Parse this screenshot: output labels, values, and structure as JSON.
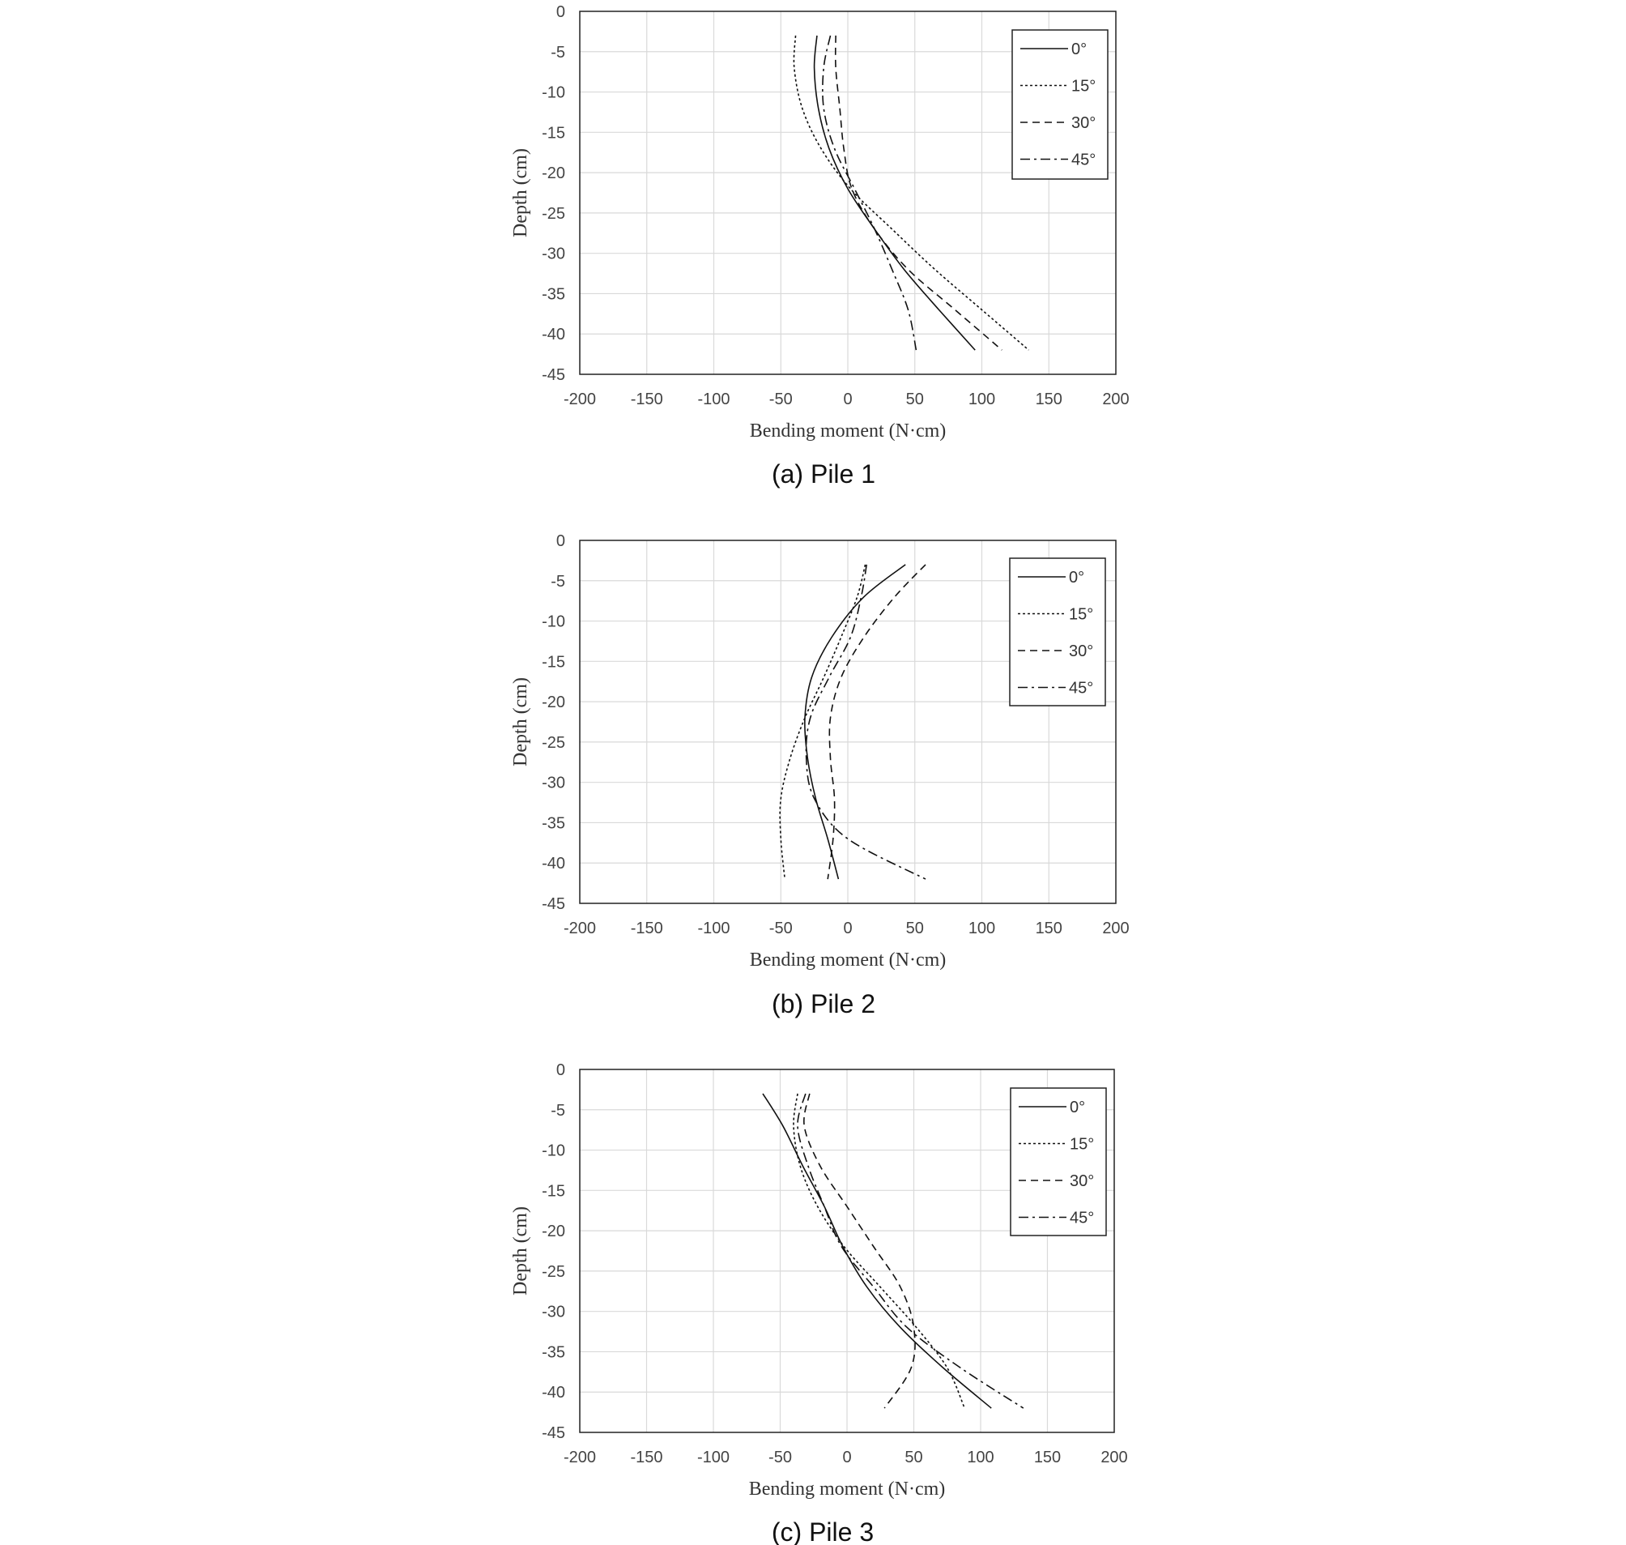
{
  "chart_data": [
    {
      "type": "line",
      "caption": "(a)  Pile 1",
      "xlabel": "Bending  moment  (N·cm)",
      "ylabel": "Depth (cm)",
      "xlim": [
        -200,
        200
      ],
      "ylim": [
        -45,
        0
      ],
      "xticks": [
        "-200",
        "-150",
        "-100",
        "-50",
        "0",
        "50",
        "100",
        "150",
        "200"
      ],
      "yticks": [
        "0",
        "-5",
        "-10",
        "-15",
        "-20",
        "-25",
        "-30",
        "-35",
        "-40",
        "-45"
      ],
      "grid": true,
      "legend_position": "top-right",
      "series": [
        {
          "name": "0°",
          "style": "solid",
          "points": [
            [
              -23,
              -3
            ],
            [
              -25,
              -7
            ],
            [
              -22,
              -12
            ],
            [
              -14,
              -17
            ],
            [
              0,
              -22
            ],
            [
              20,
              -27
            ],
            [
              42,
              -32
            ],
            [
              68,
              -37
            ],
            [
              95,
              -42
            ]
          ]
        },
        {
          "name": "15°",
          "style": "dotted",
          "points": [
            [
              -39,
              -3
            ],
            [
              -40,
              -7
            ],
            [
              -34,
              -12
            ],
            [
              -20,
              -17
            ],
            [
              2,
              -22
            ],
            [
              33,
              -27
            ],
            [
              65,
              -32
            ],
            [
              100,
              -37
            ],
            [
              135,
              -42
            ]
          ]
        },
        {
          "name": "30°",
          "style": "dashed",
          "points": [
            [
              -9,
              -3
            ],
            [
              -9,
              -7
            ],
            [
              -6,
              -12
            ],
            [
              -3,
              -17
            ],
            [
              3,
              -22
            ],
            [
              20,
              -27
            ],
            [
              45,
              -32
            ],
            [
              80,
              -37
            ],
            [
              115,
              -42
            ]
          ]
        },
        {
          "name": "45°",
          "style": "dashdot",
          "points": [
            [
              -13,
              -3
            ],
            [
              -18,
              -7
            ],
            [
              -18,
              -12
            ],
            [
              -10,
              -17
            ],
            [
              5,
              -22
            ],
            [
              20,
              -27
            ],
            [
              33,
              -32
            ],
            [
              45,
              -37
            ],
            [
              51,
              -42
            ]
          ]
        }
      ]
    },
    {
      "type": "line",
      "caption": "(b)  Pile 2",
      "xlabel": "Bending  moment  (N·cm)",
      "ylabel": "Depth (cm)",
      "xlim": [
        -200,
        200
      ],
      "ylim": [
        -45,
        0
      ],
      "xticks": [
        "-200",
        "-150",
        "-100",
        "-50",
        "0",
        "50",
        "100",
        "150",
        "200"
      ],
      "yticks": [
        "0",
        "-5",
        "-10",
        "-15",
        "-20",
        "-25",
        "-30",
        "-35",
        "-40",
        "-45"
      ],
      "grid": true,
      "legend_position": "top-right",
      "series": [
        {
          "name": "0°",
          "style": "solid",
          "points": [
            [
              43,
              -3
            ],
            [
              12,
              -7
            ],
            [
              -12,
              -12
            ],
            [
              -27,
              -17
            ],
            [
              -32,
              -22
            ],
            [
              -30,
              -27
            ],
            [
              -24,
              -32
            ],
            [
              -15,
              -37
            ],
            [
              -7,
              -42
            ]
          ]
        },
        {
          "name": "15°",
          "style": "dotted",
          "points": [
            [
              13,
              -3
            ],
            [
              7,
              -7
            ],
            [
              -5,
              -12
            ],
            [
              -18,
              -17
            ],
            [
              -32,
              -22
            ],
            [
              -43,
              -27
            ],
            [
              -50,
              -32
            ],
            [
              -50,
              -37
            ],
            [
              -47,
              -42
            ]
          ]
        },
        {
          "name": "30°",
          "style": "dashed",
          "points": [
            [
              58,
              -3
            ],
            [
              35,
              -7
            ],
            [
              12,
              -12
            ],
            [
              -5,
              -17
            ],
            [
              -13,
              -22
            ],
            [
              -13,
              -27
            ],
            [
              -10,
              -32
            ],
            [
              -11,
              -37
            ],
            [
              -15,
              -42
            ]
          ]
        },
        {
          "name": "45°",
          "style": "dashdot",
          "points": [
            [
              14,
              -3
            ],
            [
              10,
              -7
            ],
            [
              2,
              -12
            ],
            [
              -14,
              -17
            ],
            [
              -28,
              -22
            ],
            [
              -31,
              -27
            ],
            [
              -25,
              -32
            ],
            [
              0,
              -37
            ],
            [
              58,
              -42
            ]
          ]
        }
      ]
    },
    {
      "type": "line",
      "caption": "(c)  Pile 3",
      "xlabel": "Bending  moment  (N·cm)",
      "ylabel": "Depth (cm)",
      "xlim": [
        -200,
        200
      ],
      "ylim": [
        -45,
        0
      ],
      "xticks": [
        "-200",
        "-150",
        "-100",
        "-50",
        "0",
        "50",
        "100",
        "150",
        "200"
      ],
      "yticks": [
        "0",
        "-5",
        "-10",
        "-15",
        "-20",
        "-25",
        "-30",
        "-35",
        "-40",
        "-45"
      ],
      "grid": true,
      "legend_position": "top-right",
      "series": [
        {
          "name": "0°",
          "style": "solid",
          "points": [
            [
              -63,
              -3
            ],
            [
              -48,
              -7
            ],
            [
              -33,
              -12
            ],
            [
              -17,
              -17
            ],
            [
              -3,
              -22
            ],
            [
              15,
              -27
            ],
            [
              40,
              -32
            ],
            [
              72,
              -37
            ],
            [
              108,
              -42
            ]
          ]
        },
        {
          "name": "15°",
          "style": "dotted",
          "points": [
            [
              -37,
              -3
            ],
            [
              -40,
              -7
            ],
            [
              -35,
              -12
            ],
            [
              -22,
              -17
            ],
            [
              -2,
              -22
            ],
            [
              25,
              -27
            ],
            [
              52,
              -32
            ],
            [
              75,
              -37
            ],
            [
              88,
              -42
            ]
          ]
        },
        {
          "name": "30°",
          "style": "dashed",
          "points": [
            [
              -28,
              -3
            ],
            [
              -32,
              -7
            ],
            [
              -20,
              -12
            ],
            [
              0,
              -17
            ],
            [
              20,
              -22
            ],
            [
              40,
              -27
            ],
            [
              50,
              -32
            ],
            [
              48,
              -37
            ],
            [
              28,
              -42
            ]
          ]
        },
        {
          "name": "45°",
          "style": "dashdot",
          "points": [
            [
              -31,
              -3
            ],
            [
              -37,
              -7
            ],
            [
              -29,
              -12
            ],
            [
              -17,
              -17
            ],
            [
              -4,
              -22
            ],
            [
              20,
              -27
            ],
            [
              45,
              -32
            ],
            [
              85,
              -37
            ],
            [
              132,
              -42
            ]
          ]
        }
      ]
    }
  ]
}
